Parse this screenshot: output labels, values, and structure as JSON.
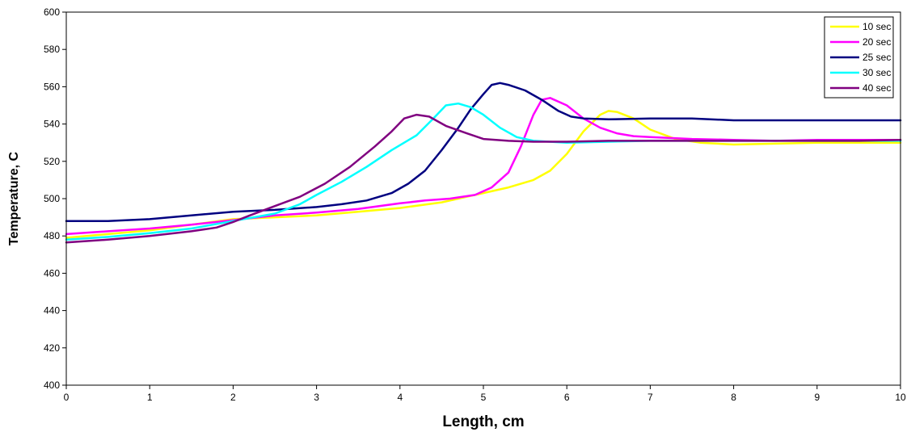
{
  "chart_data": {
    "type": "line",
    "title": "",
    "xlabel": "Length, cm",
    "ylabel": "Temperature, C",
    "xlim": [
      0,
      10
    ],
    "ylim": [
      400,
      600
    ],
    "x_ticks": [
      0,
      1,
      2,
      3,
      4,
      5,
      6,
      7,
      8,
      9,
      10
    ],
    "y_ticks": [
      400,
      420,
      440,
      460,
      480,
      500,
      520,
      540,
      560,
      580,
      600
    ],
    "grid": false,
    "legend_position": "top-right",
    "series": [
      {
        "name": "10 sec",
        "color": "#ffff00",
        "points": [
          [
            0,
            479
          ],
          [
            0.5,
            481
          ],
          [
            1,
            483
          ],
          [
            1.5,
            486
          ],
          [
            2,
            489
          ],
          [
            2.5,
            490
          ],
          [
            3,
            491
          ],
          [
            3.5,
            493
          ],
          [
            4,
            495
          ],
          [
            4.5,
            498
          ],
          [
            4.8,
            501
          ],
          [
            5,
            503
          ],
          [
            5.3,
            506
          ],
          [
            5.6,
            510
          ],
          [
            5.8,
            515
          ],
          [
            6,
            524
          ],
          [
            6.2,
            536
          ],
          [
            6.4,
            545
          ],
          [
            6.5,
            547
          ],
          [
            6.6,
            546.5
          ],
          [
            6.8,
            543
          ],
          [
            7,
            537
          ],
          [
            7.3,
            532
          ],
          [
            7.6,
            530
          ],
          [
            8,
            529
          ],
          [
            8.5,
            529.5
          ],
          [
            9,
            530
          ],
          [
            9.5,
            530
          ],
          [
            10,
            530
          ]
        ]
      },
      {
        "name": "20 sec",
        "color": "#ff00ff",
        "points": [
          [
            0,
            481
          ],
          [
            0.5,
            482.5
          ],
          [
            1,
            484
          ],
          [
            1.5,
            486
          ],
          [
            2,
            488.5
          ],
          [
            2.5,
            491
          ],
          [
            3,
            492.5
          ],
          [
            3.5,
            494.5
          ],
          [
            4,
            497.5
          ],
          [
            4.3,
            499
          ],
          [
            4.6,
            500
          ],
          [
            4.9,
            502
          ],
          [
            5.1,
            506
          ],
          [
            5.3,
            514
          ],
          [
            5.45,
            528
          ],
          [
            5.6,
            545
          ],
          [
            5.7,
            553
          ],
          [
            5.8,
            554
          ],
          [
            6,
            550
          ],
          [
            6.2,
            543
          ],
          [
            6.4,
            538
          ],
          [
            6.6,
            535
          ],
          [
            6.8,
            533.5
          ],
          [
            7,
            533
          ],
          [
            7.5,
            532
          ],
          [
            8,
            531.5
          ],
          [
            8.5,
            531
          ],
          [
            9,
            531.5
          ],
          [
            9.5,
            531.5
          ],
          [
            10,
            531.5
          ]
        ]
      },
      {
        "name": "25 sec",
        "color": "#000080",
        "points": [
          [
            0,
            488
          ],
          [
            0.5,
            488
          ],
          [
            1,
            489
          ],
          [
            1.5,
            491
          ],
          [
            2,
            493
          ],
          [
            2.5,
            494
          ],
          [
            3,
            495.5
          ],
          [
            3.3,
            497
          ],
          [
            3.6,
            499
          ],
          [
            3.9,
            503
          ],
          [
            4.1,
            508
          ],
          [
            4.3,
            515
          ],
          [
            4.5,
            526
          ],
          [
            4.7,
            538
          ],
          [
            4.85,
            548
          ],
          [
            5,
            556
          ],
          [
            5.1,
            561
          ],
          [
            5.2,
            562
          ],
          [
            5.3,
            561
          ],
          [
            5.5,
            558
          ],
          [
            5.7,
            553
          ],
          [
            5.9,
            547
          ],
          [
            6.05,
            544
          ],
          [
            6.2,
            543
          ],
          [
            6.5,
            542.5
          ],
          [
            7,
            543
          ],
          [
            7.5,
            543
          ],
          [
            8,
            542
          ],
          [
            8.5,
            542
          ],
          [
            9,
            542
          ],
          [
            9.5,
            542
          ],
          [
            10,
            542
          ]
        ]
      },
      {
        "name": "30 sec",
        "color": "#00ffff",
        "points": [
          [
            0,
            478
          ],
          [
            0.5,
            479.5
          ],
          [
            1,
            481.5
          ],
          [
            1.5,
            484
          ],
          [
            2,
            488
          ],
          [
            2.5,
            492
          ],
          [
            2.8,
            497
          ],
          [
            3,
            502
          ],
          [
            3.3,
            509
          ],
          [
            3.6,
            517
          ],
          [
            3.9,
            526
          ],
          [
            4.2,
            534
          ],
          [
            4.4,
            543
          ],
          [
            4.55,
            550
          ],
          [
            4.7,
            551
          ],
          [
            4.85,
            549
          ],
          [
            5,
            545
          ],
          [
            5.2,
            538
          ],
          [
            5.4,
            533
          ],
          [
            5.6,
            531
          ],
          [
            6,
            530
          ],
          [
            6.5,
            530.5
          ],
          [
            7,
            531
          ],
          [
            7.5,
            531
          ],
          [
            8,
            531
          ],
          [
            8.5,
            531
          ],
          [
            9,
            531
          ],
          [
            9.5,
            531
          ],
          [
            10,
            531
          ]
        ]
      },
      {
        "name": "40 sec",
        "color": "#800080",
        "points": [
          [
            0,
            476.5
          ],
          [
            0.5,
            478
          ],
          [
            1,
            480
          ],
          [
            1.5,
            482.5
          ],
          [
            1.8,
            484.5
          ],
          [
            2,
            487.5
          ],
          [
            2.2,
            491
          ],
          [
            2.5,
            496
          ],
          [
            2.8,
            501
          ],
          [
            3.1,
            508
          ],
          [
            3.4,
            517
          ],
          [
            3.7,
            528
          ],
          [
            3.9,
            536
          ],
          [
            4.05,
            543
          ],
          [
            4.2,
            545
          ],
          [
            4.35,
            544
          ],
          [
            4.55,
            539
          ],
          [
            4.8,
            535
          ],
          [
            5,
            532
          ],
          [
            5.3,
            531
          ],
          [
            5.6,
            530.5
          ],
          [
            6,
            530.5
          ],
          [
            6.5,
            531
          ],
          [
            7,
            531
          ],
          [
            7.5,
            531
          ],
          [
            8,
            531
          ],
          [
            8.5,
            531
          ],
          [
            9,
            531
          ],
          [
            9.5,
            531
          ],
          [
            10,
            531.5
          ]
        ]
      }
    ]
  }
}
